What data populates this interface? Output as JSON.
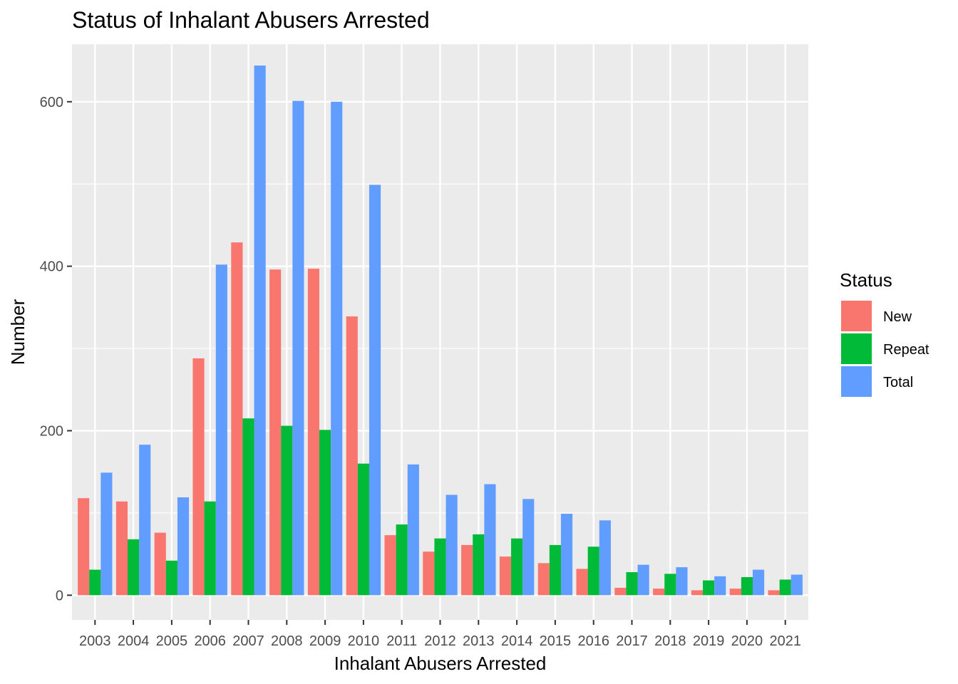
{
  "chart_data": {
    "type": "bar",
    "title": "Status of Inhalant Abusers Arrested",
    "xlabel": "Inhalant Abusers Arrested",
    "ylabel": "Number",
    "ylim": [
      -30,
      670
    ],
    "yticks": [
      0,
      200,
      400,
      600
    ],
    "grid": true,
    "legend_position": "right",
    "legend_title": "Status",
    "categories": [
      "2003",
      "2004",
      "2005",
      "2006",
      "2007",
      "2008",
      "2009",
      "2010",
      "2011",
      "2012",
      "2013",
      "2014",
      "2015",
      "2016",
      "2017",
      "2018",
      "2019",
      "2020",
      "2021"
    ],
    "series": [
      {
        "name": "New",
        "color": "#F8766D",
        "values": [
          118,
          114,
          76,
          288,
          429,
          396,
          397,
          339,
          73,
          53,
          61,
          47,
          39,
          32,
          9,
          8,
          6,
          8,
          6
        ]
      },
      {
        "name": "Repeat",
        "color": "#00BA38",
        "values": [
          31,
          68,
          42,
          114,
          215,
          206,
          201,
          160,
          86,
          69,
          74,
          69,
          61,
          59,
          28,
          26,
          18,
          22,
          19
        ]
      },
      {
        "name": "Total",
        "color": "#619CFF",
        "values": [
          149,
          183,
          119,
          402,
          644,
          601,
          600,
          499,
          159,
          122,
          135,
          117,
          99,
          91,
          37,
          34,
          23,
          31,
          25
        ]
      }
    ]
  }
}
